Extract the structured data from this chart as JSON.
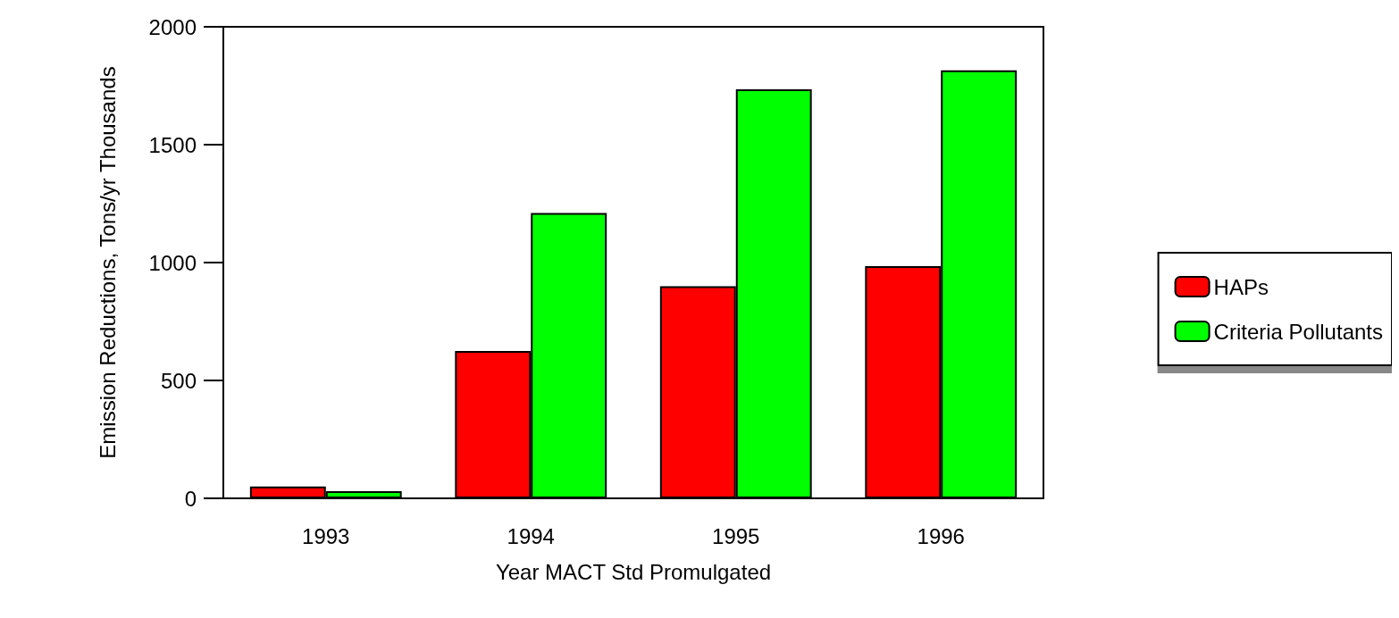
{
  "chart_data": {
    "type": "bar",
    "xlabel": "Year MACT Std Promulgated",
    "ylabel": "Emission Reductions, Tons/yr Thousands",
    "categories": [
      "1993",
      "1994",
      "1995",
      "1996"
    ],
    "series": [
      {
        "name": "HAPs",
        "color": "#ff0000",
        "values": [
          50,
          625,
          900,
          985
        ]
      },
      {
        "name": "Criteria Pollutants",
        "color": "#00ff00",
        "values": [
          30,
          1210,
          1735,
          1815
        ]
      }
    ],
    "ylim": [
      0,
      2000
    ],
    "yticks": [
      0,
      500,
      1000,
      1500,
      2000
    ],
    "grid": false,
    "legend": "right"
  }
}
